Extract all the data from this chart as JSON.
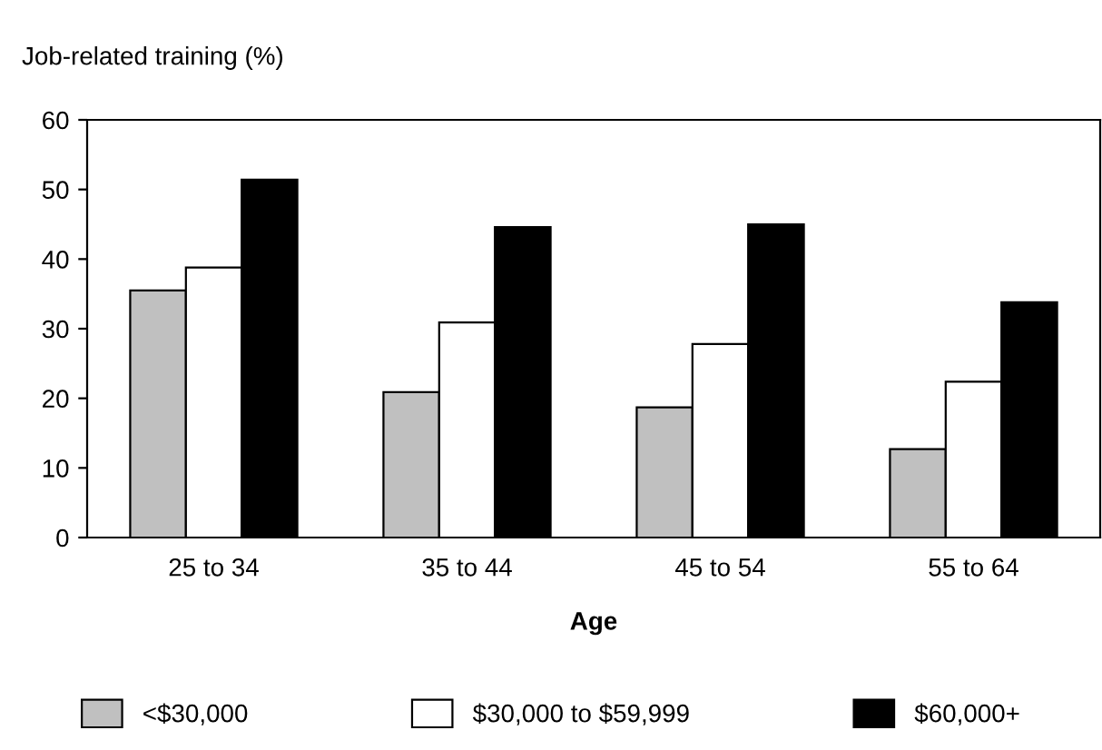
{
  "chart_data": {
    "type": "bar",
    "ylabel": "Job-related training (%)",
    "xlabel": "Age",
    "categories": [
      "25 to 34",
      "35 to 44",
      "45 to 54",
      "55 to 64"
    ],
    "series": [
      {
        "name": "<$30,000",
        "color": "#c0c0c0",
        "values": [
          35.5,
          20.9,
          18.7,
          12.7
        ]
      },
      {
        "name": "$30,000 to $59,999",
        "color": "#ffffff",
        "values": [
          38.8,
          30.9,
          27.8,
          22.4
        ]
      },
      {
        "name": "$60,000+",
        "color": "#000000",
        "values": [
          51.4,
          44.6,
          45.0,
          33.8
        ]
      }
    ],
    "ylim": [
      0,
      60
    ],
    "yticks": [
      0,
      10,
      20,
      30,
      40,
      50,
      60
    ],
    "grid": false,
    "legend": "bottom"
  }
}
